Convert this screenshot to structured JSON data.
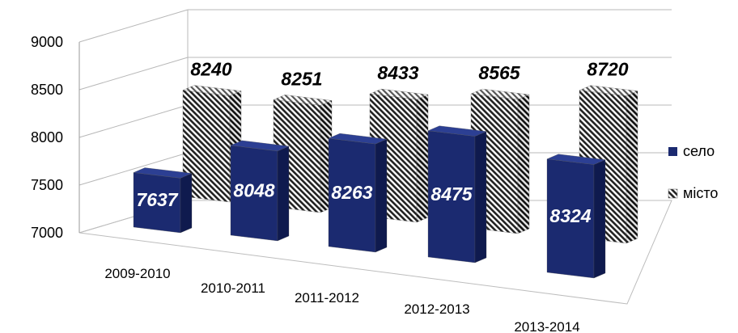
{
  "chart_data": {
    "type": "bar",
    "title": "",
    "xlabel": "",
    "ylabel": "",
    "categories": [
      "2009-2010",
      "2010-2011",
      "2011-2012",
      "2012-2013",
      "2013-2014"
    ],
    "series": [
      {
        "name": "село",
        "values": [
          7637,
          8048,
          8263,
          8475,
          8324
        ],
        "color": "#1b2a70"
      },
      {
        "name": "місто",
        "values": [
          8240,
          8251,
          8433,
          8565,
          8720
        ],
        "color": "#9a9a9a"
      }
    ],
    "ylim": [
      7000,
      9000
    ],
    "yticks": [
      7000,
      7500,
      8000,
      8500,
      9000
    ],
    "grid": true,
    "legend_position": "right",
    "three_d": true
  }
}
